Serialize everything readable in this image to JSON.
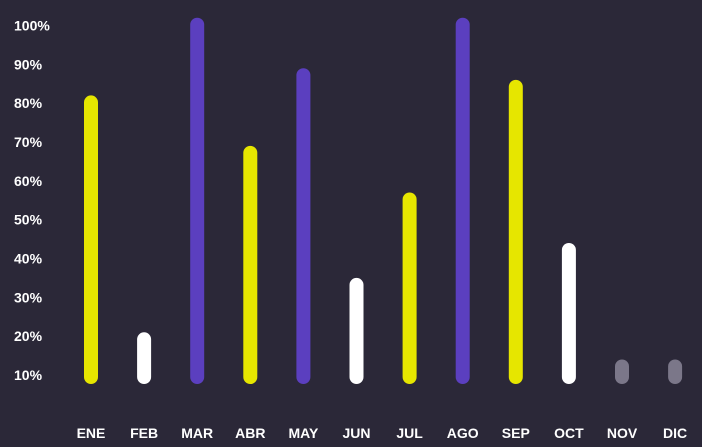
{
  "chart_data": {
    "type": "bar",
    "categories": [
      "ENE",
      "FEB",
      "MAR",
      "ABR",
      "MAY",
      "JUN",
      "JUL",
      "AGO",
      "SEP",
      "OCT",
      "NOV",
      "DIC"
    ],
    "values": [
      82,
      21,
      102,
      69,
      89,
      35,
      57,
      102,
      86,
      44,
      14,
      14
    ],
    "colors": [
      "#e6e600",
      "#ffffff",
      "#5b3fbf",
      "#e6e600",
      "#5b3fbf",
      "#ffffff",
      "#e6e600",
      "#5b3fbf",
      "#e6e600",
      "#ffffff",
      "#7b7789",
      "#7b7789"
    ],
    "y_ticks": [
      "10%",
      "20%",
      "30%",
      "40%",
      "50%",
      "60%",
      "70%",
      "80%",
      "90%",
      "100%"
    ],
    "y_tick_values": [
      10,
      20,
      30,
      40,
      50,
      60,
      70,
      80,
      90,
      100
    ],
    "ylim": [
      10,
      100
    ],
    "grid": false,
    "legend": "none",
    "background": "#2b2838"
  }
}
